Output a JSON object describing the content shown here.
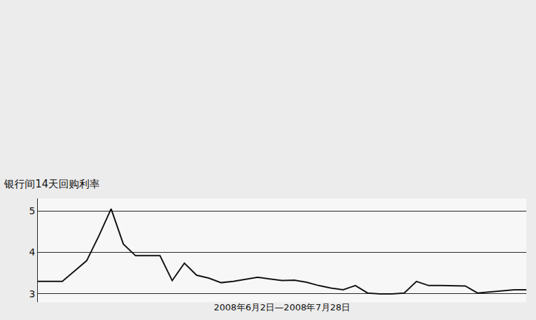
{
  "chart_data": {
    "type": "line",
    "title": "银行间14天回购利率",
    "x_label": "2008年6月2日—2008年7月28日",
    "categories": [
      null,
      null,
      null,
      null,
      null,
      null,
      null,
      null,
      null,
      null,
      null,
      null,
      null,
      null,
      null,
      null,
      null,
      null,
      null,
      null,
      null,
      null,
      null,
      null,
      null,
      null,
      null,
      null,
      null,
      null,
      null,
      null,
      null,
      null,
      null,
      null,
      null,
      null,
      null,
      null,
      null
    ],
    "values": [
      3.3,
      3.3,
      3.3,
      3.55,
      3.8,
      4.4,
      5.05,
      4.2,
      3.92,
      3.92,
      3.92,
      3.32,
      3.74,
      3.45,
      3.38,
      3.27,
      3.3,
      3.35,
      3.4,
      3.36,
      3.32,
      3.33,
      3.28,
      3.2,
      3.14,
      3.1,
      3.2,
      3.02,
      3.0,
      3.0,
      3.02,
      3.3,
      3.2,
      3.2,
      3.2,
      3.19,
      3.02,
      3.05,
      3.08,
      3.1,
      3.1
    ],
    "color": "#111111",
    "ylim": [
      2.8,
      5.3
    ],
    "yticks": [
      3,
      4,
      5
    ],
    "grid": true,
    "tick_labels": "y"
  }
}
